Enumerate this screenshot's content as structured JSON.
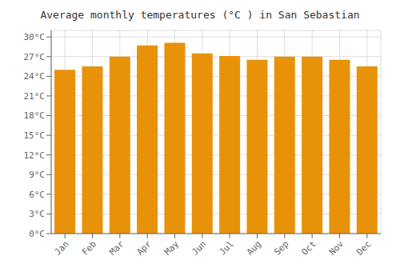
{
  "chart_data": {
    "type": "bar",
    "title": "Average monthly temperatures (°C ) in San Sebastian",
    "categories": [
      "Jan",
      "Feb",
      "Mar",
      "Apr",
      "May",
      "Jun",
      "Jul",
      "Aug",
      "Sep",
      "Oct",
      "Nov",
      "Dec"
    ],
    "values": [
      25.0,
      25.5,
      27.0,
      28.7,
      29.1,
      27.5,
      27.1,
      26.5,
      27.0,
      27.0,
      26.5,
      25.5
    ],
    "color": "#E8920A",
    "ylim": [
      0,
      31
    ],
    "yticks": [
      {
        "value": 0,
        "label": "0°C"
      },
      {
        "value": 3,
        "label": "3°C"
      },
      {
        "value": 6,
        "label": "6°C"
      },
      {
        "value": 9,
        "label": "9°C"
      },
      {
        "value": 12,
        "label": "12°C"
      },
      {
        "value": 15,
        "label": "15°C"
      },
      {
        "value": 18,
        "label": "18°C"
      },
      {
        "value": 21,
        "label": "21°C"
      },
      {
        "value": 24,
        "label": "24°C"
      },
      {
        "value": 27,
        "label": "27°C"
      },
      {
        "value": 30,
        "label": "30°C"
      }
    ],
    "grid": true
  }
}
